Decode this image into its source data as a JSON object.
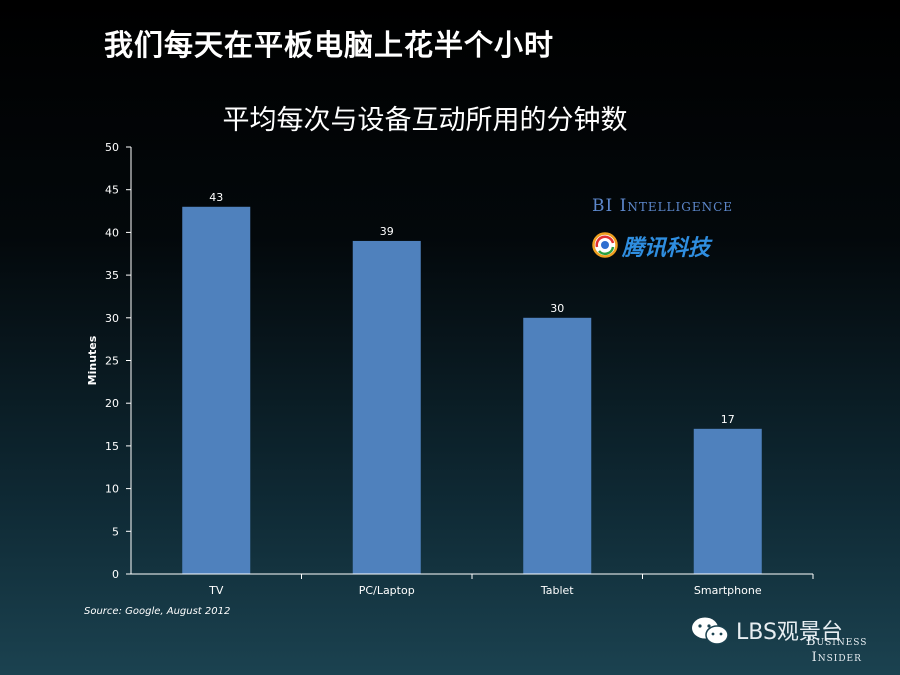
{
  "slide_title": "我们每天在平板电脑上花半个小时",
  "source": "Source: Google, August 2012",
  "logos": {
    "bi": "BI Intelligence",
    "tencent": "腾讯科技",
    "watermark": "LBS观景台",
    "publisher_line1": "Business",
    "publisher_line2": "Insider"
  },
  "colors": {
    "bar": "#4f81bd",
    "axis": "#ffffff"
  },
  "chart_data": {
    "type": "bar",
    "title": "平均每次与设备互动所用的分钟数",
    "xlabel": "",
    "ylabel": "Minutes",
    "categories": [
      "TV",
      "PC/Laptop",
      "Tablet",
      "Smartphone"
    ],
    "values": [
      43,
      39,
      30,
      17
    ],
    "data_labels": [
      "43",
      "39",
      "30",
      "17"
    ],
    "ylim": [
      0,
      50
    ],
    "yticks": [
      0,
      5,
      10,
      15,
      20,
      25,
      30,
      35,
      40,
      45,
      50
    ],
    "grid": false,
    "legend": "none"
  }
}
